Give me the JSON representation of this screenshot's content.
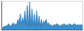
{
  "chart_data": {
    "type": "area",
    "values": [
      3,
      2,
      4,
      3,
      5,
      4,
      7,
      5,
      4,
      6,
      8,
      5,
      7,
      6,
      12,
      8,
      18,
      6,
      14,
      8,
      22,
      5,
      28,
      4,
      32,
      4,
      24,
      5,
      18,
      4,
      22,
      5,
      16,
      4,
      12,
      5,
      10,
      8,
      12,
      6,
      8,
      5,
      6,
      4,
      5,
      6,
      5,
      7,
      6,
      5,
      4,
      6,
      5,
      7,
      6,
      5,
      6,
      5,
      7,
      6,
      5,
      6,
      7,
      6,
      5,
      6,
      5,
      6,
      5,
      6
    ],
    "colors": [
      "#1a6eb8",
      "#3a8fcc"
    ],
    "xlim": [
      0,
      69
    ],
    "ylim": [
      0,
      32.64
    ],
    "tick_labels": false
  }
}
